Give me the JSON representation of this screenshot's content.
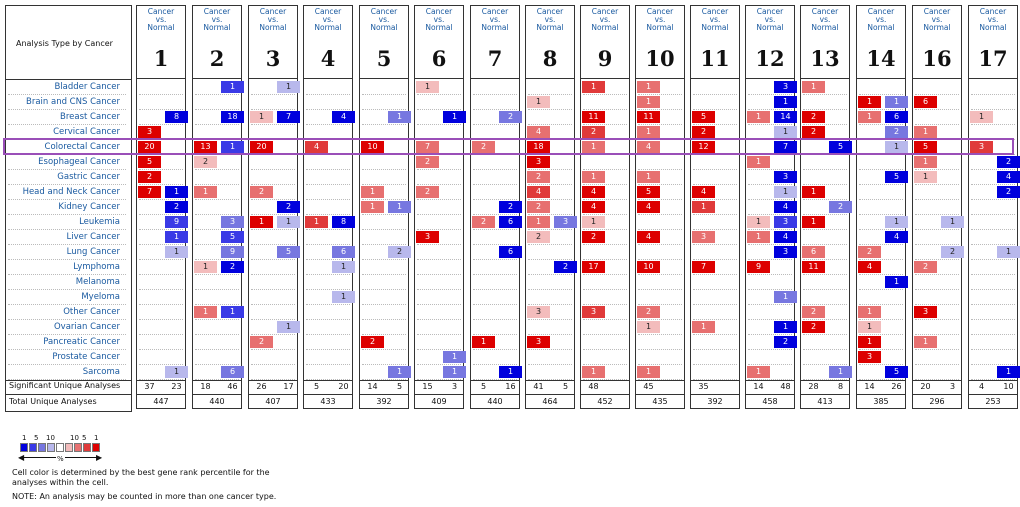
{
  "header": {
    "analysis_type_label": "Analysis Type by Cancer",
    "comparison_label_lines": [
      "Cancer",
      "vs.",
      "Normal"
    ]
  },
  "cancers": [
    "Bladder Cancer",
    "Brain and CNS Cancer",
    "Breast Cancer",
    "Cervical Cancer",
    "Colorectal Cancer",
    "Esophageal Cancer",
    "Gastric Cancer",
    "Head and Neck Cancer",
    "Kidney Cancer",
    "Leukemia",
    "Liver Cancer",
    "Lung Cancer",
    "Lymphoma",
    "Melanoma",
    "Myeloma",
    "Other Cancer",
    "Ovarian Cancer",
    "Pancreatic Cancer",
    "Prostate Cancer",
    "Sarcoma"
  ],
  "highlighted_cancer": "Colorectal Cancer",
  "footer_labels": {
    "significant": "Significant Unique Analyses",
    "total": "Total Unique Analyses"
  },
  "legend": {
    "top_numbers": [
      "1",
      "5",
      "10",
      "10",
      "5",
      "1"
    ],
    "unit": "%",
    "colors": [
      "#0000dd",
      "#3a3ae6",
      "#7777e0",
      "#b8b8ec",
      "#ffffff",
      "#f3bcbc",
      "#e77070",
      "#e03a3a",
      "#dd0000"
    ],
    "note1": "Cell color is determined by the best gene rank percentile for the analyses within the cell.",
    "note2": "NOTE: An analysis may be counted in more than one cancer type."
  },
  "chart_data": {
    "type": "heatmap",
    "title": "",
    "row_label": "Analysis Type by Cancer",
    "datasets": [
      {
        "id": "1",
        "sig_up": "37",
        "sig_down": "23",
        "total": "447",
        "up": {
          "Cervical Cancer": 3,
          "Colorectal Cancer": 20,
          "Esophageal Cancer": 5,
          "Gastric Cancer": 2,
          "Head and Neck Cancer": 7
        },
        "down": {
          "Breast Cancer": 8,
          "Head and Neck Cancer": 1,
          "Kidney Cancer": 2,
          "Leukemia": 9,
          "Liver Cancer": 1,
          "Lung Cancer": 1,
          "Sarcoma": 1
        },
        "up_lvl": {
          "Cervical Cancer": 1,
          "Colorectal Cancer": 1,
          "Esophageal Cancer": 1,
          "Gastric Cancer": 1,
          "Head and Neck Cancer": 1
        },
        "down_lvl": {
          "Breast Cancer": 1,
          "Head and Neck Cancer": 1,
          "Kidney Cancer": 1,
          "Leukemia": 2,
          "Liver Cancer": 2,
          "Lung Cancer": 4,
          "Sarcoma": 4
        }
      },
      {
        "id": "2",
        "sig_up": "18",
        "sig_down": "46",
        "total": "440",
        "up": {
          "Colorectal Cancer": 13,
          "Esophageal Cancer": 2,
          "Head and Neck Cancer": 1,
          "Lymphoma": 1,
          "Other Cancer": 1
        },
        "down": {
          "Bladder Cancer": 1,
          "Breast Cancer": 18,
          "Colorectal Cancer": 1,
          "Leukemia": 3,
          "Liver Cancer": 5,
          "Lung Cancer": 9,
          "Lymphoma": 2,
          "Other Cancer": 1,
          "Sarcoma": 6
        },
        "up_lvl": {
          "Colorectal Cancer": 1,
          "Esophageal Cancer": 4,
          "Head and Neck Cancer": 3,
          "Lymphoma": 4,
          "Other Cancer": 3
        },
        "down_lvl": {
          "Bladder Cancer": 2,
          "Breast Cancer": 1,
          "Colorectal Cancer": 2,
          "Leukemia": 3,
          "Liver Cancer": 2,
          "Lung Cancer": 3,
          "Lymphoma": 1,
          "Other Cancer": 2,
          "Sarcoma": 3
        }
      },
      {
        "id": "3",
        "sig_up": "26",
        "sig_down": "17",
        "total": "407",
        "up": {
          "Breast Cancer": 1,
          "Colorectal Cancer": 20,
          "Head and Neck Cancer": 2,
          "Leukemia": 1,
          "Pancreatic Cancer": 2
        },
        "down": {
          "Bladder Cancer": 1,
          "Breast Cancer": 7,
          "Kidney Cancer": 2,
          "Leukemia": 1,
          "Lung Cancer": 5,
          "Ovarian Cancer": 1
        },
        "up_lvl": {
          "Breast Cancer": 4,
          "Colorectal Cancer": 1,
          "Head and Neck Cancer": 3,
          "Leukemia": 1,
          "Pancreatic Cancer": 3
        },
        "down_lvl": {
          "Bladder Cancer": 4,
          "Breast Cancer": 1,
          "Kidney Cancer": 1,
          "Leukemia": 4,
          "Lung Cancer": 3,
          "Ovarian Cancer": 4
        }
      },
      {
        "id": "4",
        "sig_up": "5",
        "sig_down": "20",
        "total": "433",
        "up": {
          "Colorectal Cancer": 4,
          "Leukemia": 1
        },
        "down": {
          "Breast Cancer": 4,
          "Leukemia": 8,
          "Lung Cancer": 6,
          "Lymphoma": 1,
          "Myeloma": 1
        },
        "up_lvl": {
          "Colorectal Cancer": 2,
          "Leukemia": 2
        },
        "down_lvl": {
          "Breast Cancer": 1,
          "Leukemia": 1,
          "Lung Cancer": 3,
          "Lymphoma": 4,
          "Myeloma": 4
        }
      },
      {
        "id": "5",
        "sig_up": "14",
        "sig_down": "5",
        "total": "392",
        "up": {
          "Colorectal Cancer": 10,
          "Head and Neck Cancer": 1,
          "Kidney Cancer": 1,
          "Pancreatic Cancer": 2
        },
        "down": {
          "Breast Cancer": 1,
          "Kidney Cancer": 1,
          "Lung Cancer": 2,
          "Sarcoma": 1
        },
        "up_lvl": {
          "Colorectal Cancer": 1,
          "Head and Neck Cancer": 3,
          "Kidney Cancer": 3,
          "Pancreatic Cancer": 1
        },
        "down_lvl": {
          "Breast Cancer": 3,
          "Kidney Cancer": 3,
          "Lung Cancer": 4,
          "Sarcoma": 3
        }
      },
      {
        "id": "6",
        "sig_up": "15",
        "sig_down": "3",
        "total": "409",
        "up": {
          "Bladder Cancer": 1,
          "Colorectal Cancer": 7,
          "Esophageal Cancer": 2,
          "Head and Neck Cancer": 2,
          "Liver Cancer": 3
        },
        "down": {
          "Breast Cancer": 1,
          "Prostate Cancer": 1,
          "Sarcoma": 1
        },
        "up_lvl": {
          "Bladder Cancer": 4,
          "Colorectal Cancer": 3,
          "Esophageal Cancer": 3,
          "Head and Neck Cancer": 3,
          "Liver Cancer": 1
        },
        "down_lvl": {
          "Breast Cancer": 1,
          "Prostate Cancer": 3,
          "Sarcoma": 3
        }
      },
      {
        "id": "7",
        "sig_up": "5",
        "sig_down": "16",
        "total": "440",
        "up": {
          "Colorectal Cancer": 2,
          "Leukemia": 2,
          "Pancreatic Cancer": 1
        },
        "down": {
          "Breast Cancer": 2,
          "Kidney Cancer": 2,
          "Leukemia": 6,
          "Lung Cancer": 6,
          "Sarcoma": 1
        },
        "up_lvl": {
          "Colorectal Cancer": 3,
          "Leukemia": 3,
          "Pancreatic Cancer": 1
        },
        "down_lvl": {
          "Breast Cancer": 3,
          "Kidney Cancer": 1,
          "Leukemia": 1,
          "Lung Cancer": 1,
          "Sarcoma": 1
        }
      },
      {
        "id": "8",
        "sig_up": "41",
        "sig_down": "5",
        "total": "464",
        "up": {
          "Brain and CNS Cancer": 1,
          "Cervical Cancer": 4,
          "Colorectal Cancer": 18,
          "Esophageal Cancer": 3,
          "Gastric Cancer": 2,
          "Head and Neck Cancer": 4,
          "Kidney Cancer": 2,
          "Leukemia": 1,
          "Liver Cancer": 2,
          "Other Cancer": 3,
          "Pancreatic Cancer": 3
        },
        "down": {
          "Leukemia": 3,
          "Lymphoma": 2
        },
        "up_lvl": {
          "Brain and CNS Cancer": 4,
          "Cervical Cancer": 3,
          "Colorectal Cancer": 1,
          "Esophageal Cancer": 1,
          "Gastric Cancer": 3,
          "Head and Neck Cancer": 2,
          "Kidney Cancer": 3,
          "Leukemia": 3,
          "Liver Cancer": 4,
          "Other Cancer": 4,
          "Pancreatic Cancer": 1
        },
        "down_lvl": {
          "Leukemia": 3,
          "Lymphoma": 1
        }
      },
      {
        "id": "9",
        "sig_up": "48",
        "sig_down": "",
        "total": "452",
        "up": {
          "Bladder Cancer": 1,
          "Breast Cancer": 11,
          "Cervical Cancer": 2,
          "Colorectal Cancer": 1,
          "Gastric Cancer": 1,
          "Head and Neck Cancer": 4,
          "Kidney Cancer": 4,
          "Leukemia": 1,
          "Liver Cancer": 2,
          "Lymphoma": 17,
          "Other Cancer": 3,
          "Sarcoma": 1
        },
        "down": {},
        "up_lvl": {
          "Bladder Cancer": 2,
          "Breast Cancer": 1,
          "Cervical Cancer": 2,
          "Colorectal Cancer": 3,
          "Gastric Cancer": 3,
          "Head and Neck Cancer": 1,
          "Kidney Cancer": 1,
          "Leukemia": 4,
          "Liver Cancer": 1,
          "Lymphoma": 1,
          "Other Cancer": 2,
          "Sarcoma": 3
        },
        "down_lvl": {}
      },
      {
        "id": "10",
        "sig_up": "45",
        "sig_down": "",
        "total": "435",
        "up": {
          "Bladder Cancer": 1,
          "Brain and CNS Cancer": 1,
          "Breast Cancer": 11,
          "Cervical Cancer": 1,
          "Colorectal Cancer": 4,
          "Gastric Cancer": 1,
          "Head and Neck Cancer": 5,
          "Kidney Cancer": 4,
          "Liver Cancer": 4,
          "Lymphoma": 10,
          "Other Cancer": 2,
          "Ovarian Cancer": 1,
          "Sarcoma": 1
        },
        "down": {},
        "up_lvl": {
          "Bladder Cancer": 3,
          "Brain and CNS Cancer": 3,
          "Breast Cancer": 1,
          "Cervical Cancer": 3,
          "Colorectal Cancer": 3,
          "Gastric Cancer": 3,
          "Head and Neck Cancer": 1,
          "Kidney Cancer": 1,
          "Liver Cancer": 1,
          "Lymphoma": 1,
          "Other Cancer": 3,
          "Ovarian Cancer": 4,
          "Sarcoma": 3
        },
        "down_lvl": {}
      },
      {
        "id": "11",
        "sig_up": "35",
        "sig_down": "",
        "total": "392",
        "up": {
          "Breast Cancer": 5,
          "Cervical Cancer": 2,
          "Colorectal Cancer": 12,
          "Head and Neck Cancer": 4,
          "Kidney Cancer": 1,
          "Liver Cancer": 3,
          "Lymphoma": 7,
          "Ovarian Cancer": 1
        },
        "down": {},
        "up_lvl": {
          "Breast Cancer": 1,
          "Cervical Cancer": 1,
          "Colorectal Cancer": 1,
          "Head and Neck Cancer": 1,
          "Kidney Cancer": 2,
          "Liver Cancer": 3,
          "Lymphoma": 1,
          "Ovarian Cancer": 3
        },
        "down_lvl": {}
      },
      {
        "id": "12",
        "sig_up": "14",
        "sig_down": "48",
        "total": "458",
        "up": {
          "Breast Cancer": 1,
          "Esophageal Cancer": 1,
          "Leukemia": 1,
          "Liver Cancer": 1,
          "Lymphoma": 9,
          "Sarcoma": 1
        },
        "down": {
          "Bladder Cancer": 3,
          "Brain and CNS Cancer": 1,
          "Breast Cancer": 14,
          "Cervical Cancer": 1,
          "Colorectal Cancer": 7,
          "Gastric Cancer": 3,
          "Head and Neck Cancer": 1,
          "Kidney Cancer": 4,
          "Leukemia": 3,
          "Liver Cancer": 4,
          "Lung Cancer": 3,
          "Myeloma": 1,
          "Ovarian Cancer": 1,
          "Pancreatic Cancer": 2
        },
        "up_lvl": {
          "Breast Cancer": 3,
          "Esophageal Cancer": 3,
          "Leukemia": 4,
          "Liver Cancer": 3,
          "Lymphoma": 1,
          "Sarcoma": 3
        },
        "down_lvl": {
          "Bladder Cancer": 1,
          "Brain and CNS Cancer": 1,
          "Breast Cancer": 1,
          "Cervical Cancer": 4,
          "Colorectal Cancer": 1,
          "Gastric Cancer": 1,
          "Head and Neck Cancer": 4,
          "Kidney Cancer": 1,
          "Leukemia": 2,
          "Liver Cancer": 1,
          "Lung Cancer": 1,
          "Myeloma": 3,
          "Ovarian Cancer": 1,
          "Pancreatic Cancer": 1
        }
      },
      {
        "id": "13",
        "sig_up": "28",
        "sig_down": "8",
        "total": "413",
        "up": {
          "Bladder Cancer": 1,
          "Breast Cancer": 2,
          "Cervical Cancer": 2,
          "Head and Neck Cancer": 1,
          "Leukemia": 1,
          "Lung Cancer": 6,
          "Lymphoma": 11,
          "Other Cancer": 2,
          "Ovarian Cancer": 2
        },
        "down": {
          "Colorectal Cancer": 5,
          "Kidney Cancer": 2,
          "Sarcoma": 1
        },
        "up_lvl": {
          "Bladder Cancer": 3,
          "Breast Cancer": 1,
          "Cervical Cancer": 1,
          "Head and Neck Cancer": 1,
          "Leukemia": 1,
          "Lung Cancer": 3,
          "Lymphoma": 1,
          "Other Cancer": 3,
          "Ovarian Cancer": 1
        },
        "down_lvl": {
          "Colorectal Cancer": 1,
          "Kidney Cancer": 3,
          "Sarcoma": 3
        }
      },
      {
        "id": "14",
        "sig_up": "14",
        "sig_down": "26",
        "total": "385",
        "up": {
          "Brain and CNS Cancer": 1,
          "Breast Cancer": 1,
          "Lung Cancer": 2,
          "Lymphoma": 4,
          "Other Cancer": 1,
          "Ovarian Cancer": 1,
          "Pancreatic Cancer": 1,
          "Prostate Cancer": 3
        },
        "down": {
          "Brain and CNS Cancer": 1,
          "Breast Cancer": 6,
          "Cervical Cancer": 2,
          "Colorectal Cancer": 1,
          "Gastric Cancer": 5,
          "Leukemia": 1,
          "Liver Cancer": 4,
          "Melanoma": 1,
          "Sarcoma": 5
        },
        "up_lvl": {
          "Brain and CNS Cancer": 1,
          "Breast Cancer": 3,
          "Lung Cancer": 3,
          "Lymphoma": 1,
          "Other Cancer": 3,
          "Ovarian Cancer": 4,
          "Pancreatic Cancer": 1,
          "Prostate Cancer": 1
        },
        "down_lvl": {
          "Brain and CNS Cancer": 3,
          "Breast Cancer": 1,
          "Cervical Cancer": 3,
          "Colorectal Cancer": 4,
          "Gastric Cancer": 1,
          "Leukemia": 4,
          "Liver Cancer": 1,
          "Melanoma": 1,
          "Sarcoma": 1
        }
      },
      {
        "id": "16",
        "sig_up": "20",
        "sig_down": "3",
        "total": "296",
        "up": {
          "Brain and CNS Cancer": 6,
          "Cervical Cancer": 1,
          "Colorectal Cancer": 5,
          "Esophageal Cancer": 1,
          "Gastric Cancer": 1,
          "Lymphoma": 2,
          "Other Cancer": 3,
          "Pancreatic Cancer": 1
        },
        "down": {
          "Leukemia": 1,
          "Lung Cancer": 2
        },
        "up_lvl": {
          "Brain and CNS Cancer": 1,
          "Cervical Cancer": 3,
          "Colorectal Cancer": 1,
          "Esophageal Cancer": 3,
          "Gastric Cancer": 4,
          "Lymphoma": 3,
          "Other Cancer": 1,
          "Pancreatic Cancer": 3
        },
        "down_lvl": {
          "Leukemia": 4,
          "Lung Cancer": 4
        }
      },
      {
        "id": "17",
        "sig_up": "4",
        "sig_down": "10",
        "total": "253",
        "up": {
          "Breast Cancer": 1,
          "Colorectal Cancer": 3
        },
        "down": {
          "Esophageal Cancer": 2,
          "Gastric Cancer": 4,
          "Head and Neck Cancer": 2,
          "Lung Cancer": 1,
          "Sarcoma": 1
        },
        "up_lvl": {
          "Breast Cancer": 4,
          "Colorectal Cancer": 2
        },
        "down_lvl": {
          "Esophageal Cancer": 1,
          "Gastric Cancer": 1,
          "Head and Neck Cancer": 1,
          "Lung Cancer": 4,
          "Sarcoma": 1
        }
      }
    ]
  }
}
